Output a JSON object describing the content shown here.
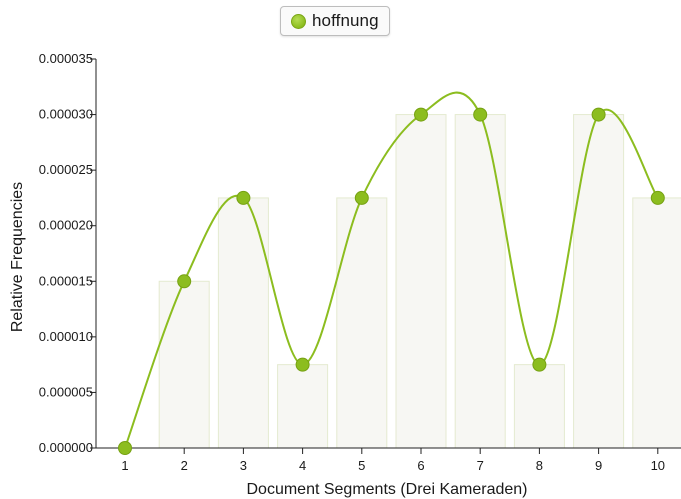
{
  "legend": {
    "label": "hoffnung",
    "color": "#8cbd1f"
  },
  "chart_data": {
    "type": "line",
    "title": "",
    "xlabel": "Document Segments (Drei Kameraden)",
    "ylabel": "Relative Frequencies",
    "categories": [
      "1",
      "2",
      "3",
      "4",
      "5",
      "6",
      "7",
      "8",
      "9",
      "10"
    ],
    "ylim": [
      0,
      3.5e-05
    ],
    "yticks": [
      "0.000000",
      "0.000005",
      "0.000010",
      "0.000015",
      "0.000020",
      "0.000025",
      "0.000030",
      "0.000035"
    ],
    "series": [
      {
        "name": "hoffnung",
        "values": [
          0,
          1.5e-05,
          2.25e-05,
          7.5e-06,
          2.25e-05,
          3e-05,
          3e-05,
          7.5e-06,
          3e-05,
          2.25e-05
        ],
        "color": "#8cbd1f"
      }
    ],
    "bars": {
      "values": [
        0,
        1.5e-05,
        2.25e-05,
        7.5e-06,
        2.25e-05,
        3e-05,
        3e-05,
        7.5e-06,
        3e-05,
        2.25e-05
      ],
      "fill": "#f7f7f3",
      "stroke": "#e4ead0"
    },
    "curve": "smooth",
    "grid": false,
    "legend_position": "top-center"
  }
}
